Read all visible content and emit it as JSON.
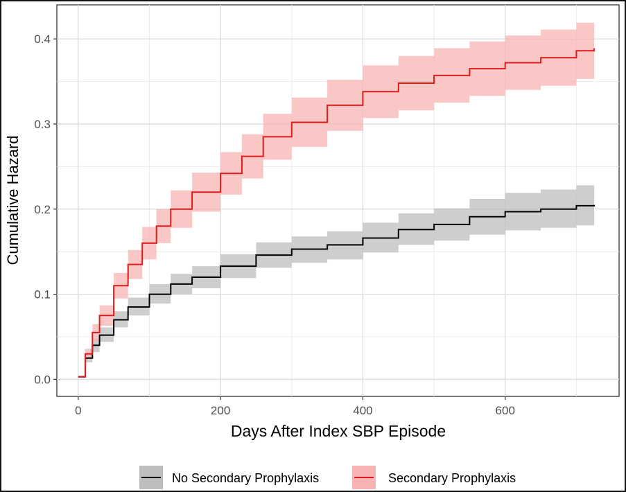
{
  "chart_data": {
    "type": "line",
    "title": "",
    "xlabel": "Days After Index SBP Episode",
    "ylabel": "Cumulative Hazard",
    "xlim": [
      -30,
      760
    ],
    "ylim": [
      -0.02,
      0.44
    ],
    "x_ticks": [
      0,
      200,
      400,
      600
    ],
    "x_tick_labels": [
      "0",
      "200",
      "400",
      "600"
    ],
    "y_ticks": [
      0.0,
      0.1,
      0.2,
      0.3,
      0.4
    ],
    "y_tick_labels": [
      "0.0",
      "0.1",
      "0.2",
      "0.3",
      "0.4"
    ],
    "grid": true,
    "legend_position": "bottom",
    "series": [
      {
        "name": "No Secondary Prophylaxis",
        "color": "#000000",
        "band_color": "#bdbdbd",
        "x": [
          0,
          10,
          20,
          30,
          50,
          70,
          100,
          130,
          160,
          200,
          250,
          300,
          350,
          400,
          450,
          500,
          550,
          600,
          650,
          700,
          725
        ],
        "y": [
          0.003,
          0.025,
          0.04,
          0.052,
          0.07,
          0.085,
          0.1,
          0.112,
          0.12,
          0.133,
          0.146,
          0.153,
          0.158,
          0.166,
          0.176,
          0.182,
          0.191,
          0.197,
          0.2,
          0.204,
          0.205
        ],
        "lower": [
          0.002,
          0.02,
          0.032,
          0.044,
          0.061,
          0.075,
          0.089,
          0.1,
          0.107,
          0.119,
          0.131,
          0.137,
          0.141,
          0.149,
          0.158,
          0.163,
          0.17,
          0.175,
          0.178,
          0.181,
          0.182
        ],
        "upper": [
          0.004,
          0.031,
          0.048,
          0.061,
          0.08,
          0.096,
          0.112,
          0.124,
          0.133,
          0.147,
          0.161,
          0.168,
          0.174,
          0.184,
          0.195,
          0.201,
          0.212,
          0.219,
          0.223,
          0.228,
          0.229
        ]
      },
      {
        "name": "Secondary Prophylaxis",
        "color": "#e01b1b",
        "band_color": "#f8b4b4",
        "x": [
          0,
          10,
          20,
          30,
          50,
          70,
          90,
          110,
          130,
          160,
          200,
          230,
          260,
          300,
          350,
          400,
          450,
          500,
          550,
          600,
          650,
          700,
          725
        ],
        "y": [
          0.003,
          0.03,
          0.055,
          0.075,
          0.11,
          0.135,
          0.16,
          0.18,
          0.2,
          0.22,
          0.242,
          0.262,
          0.285,
          0.302,
          0.322,
          0.338,
          0.348,
          0.357,
          0.365,
          0.372,
          0.378,
          0.386,
          0.389
        ],
        "lower": [
          0.002,
          0.024,
          0.045,
          0.063,
          0.095,
          0.118,
          0.141,
          0.16,
          0.178,
          0.197,
          0.217,
          0.236,
          0.258,
          0.273,
          0.292,
          0.307,
          0.316,
          0.325,
          0.333,
          0.34,
          0.345,
          0.353,
          0.356
        ],
        "upper": [
          0.004,
          0.036,
          0.065,
          0.087,
          0.125,
          0.152,
          0.179,
          0.2,
          0.222,
          0.243,
          0.267,
          0.288,
          0.312,
          0.331,
          0.352,
          0.369,
          0.38,
          0.389,
          0.397,
          0.404,
          0.411,
          0.419,
          0.422
        ]
      }
    ]
  }
}
